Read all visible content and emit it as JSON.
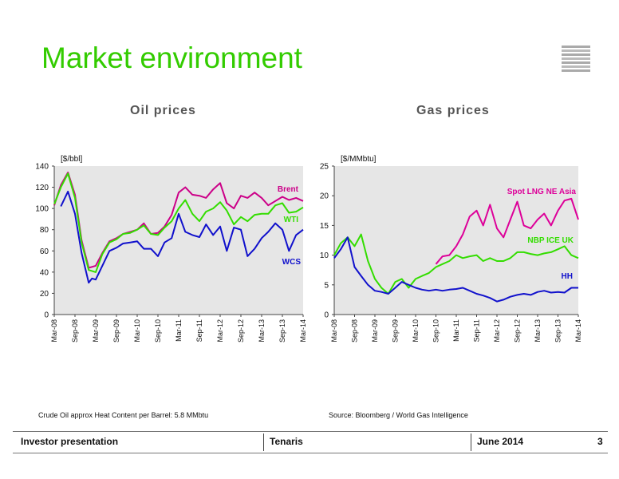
{
  "page": {
    "title": "Market environment"
  },
  "notes": {
    "left": "Crude Oil approx Heat Content per Barrel: 5.8 MMbtu",
    "right": "Source:  Bloomberg / World Gas Intelligence"
  },
  "footer": {
    "presentation": "Investor presentation",
    "company": "Tenaris",
    "date": "June 2014",
    "page_number": "3"
  },
  "colors": {
    "title": "#33cc00",
    "plot_bg": "#e6e6e6",
    "brent": "#cc0088",
    "wti": "#33dd00",
    "wcs": "#1111cc",
    "lng": "#dd0099",
    "nbp": "#33dd00",
    "hh": "#1111cc"
  },
  "chart_data": [
    {
      "type": "line",
      "title": "Oil prices",
      "ylabel": "[$/bbl]",
      "ylim": [
        0,
        140
      ],
      "yticks": [
        "0",
        "20",
        "40",
        "60",
        "80",
        "100",
        "120",
        "140"
      ],
      "xticks": [
        "Mar-08",
        "Sep-08",
        "Mar-09",
        "Sep-09",
        "Mar-10",
        "Sep-10",
        "Mar-11",
        "Sep-11",
        "Mar-12",
        "Sep-12",
        "Mar-13",
        "Sep-13",
        "Mar-14"
      ],
      "grid": false,
      "series": [
        {
          "name": "Brent",
          "color": "#cc0088",
          "x": [
            2008.17,
            2008.33,
            2008.5,
            2008.67,
            2008.83,
            2009.0,
            2009.17,
            2009.33,
            2009.5,
            2009.67,
            2009.83,
            2010.0,
            2010.17,
            2010.33,
            2010.5,
            2010.67,
            2010.83,
            2011.0,
            2011.17,
            2011.33,
            2011.5,
            2011.67,
            2011.83,
            2012.0,
            2012.17,
            2012.33,
            2012.5,
            2012.67,
            2012.83,
            2013.0,
            2013.17,
            2013.33,
            2013.5,
            2013.67,
            2013.83,
            2014.0,
            2014.17
          ],
          "y": [
            103,
            122,
            134,
            113,
            70,
            44,
            46,
            58,
            69,
            72,
            76,
            78,
            80,
            86,
            76,
            77,
            83,
            94,
            115,
            120,
            113,
            112,
            110,
            118,
            124,
            105,
            100,
            112,
            110,
            115,
            110,
            103,
            107,
            111,
            108,
            110,
            107
          ]
        },
        {
          "name": "WTI",
          "color": "#33dd00",
          "x": [
            2008.17,
            2008.33,
            2008.5,
            2008.67,
            2008.83,
            2009.0,
            2009.17,
            2009.33,
            2009.5,
            2009.67,
            2009.83,
            2010.0,
            2010.17,
            2010.33,
            2010.5,
            2010.67,
            2010.83,
            2011.0,
            2011.17,
            2011.33,
            2011.5,
            2011.67,
            2011.83,
            2012.0,
            2012.17,
            2012.33,
            2012.5,
            2012.67,
            2012.83,
            2013.0,
            2013.17,
            2013.33,
            2013.5,
            2013.67,
            2013.83,
            2014.0,
            2014.17
          ],
          "y": [
            104,
            120,
            133,
            110,
            68,
            42,
            40,
            57,
            68,
            71,
            76,
            77,
            80,
            84,
            76,
            75,
            82,
            88,
            100,
            108,
            95,
            88,
            97,
            100,
            106,
            98,
            85,
            92,
            88,
            94,
            95,
            95,
            103,
            105,
            96,
            97,
            101
          ]
        },
        {
          "name": "WCS",
          "color": "#1111cc",
          "x": [
            2008.33,
            2008.5,
            2008.67,
            2008.83,
            2009.0,
            2009.08,
            2009.17,
            2009.33,
            2009.5,
            2009.67,
            2009.83,
            2010.0,
            2010.17,
            2010.33,
            2010.5,
            2010.67,
            2010.83,
            2011.0,
            2011.17,
            2011.33,
            2011.5,
            2011.67,
            2011.83,
            2012.0,
            2012.17,
            2012.33,
            2012.5,
            2012.67,
            2012.83,
            2013.0,
            2013.17,
            2013.33,
            2013.5,
            2013.67,
            2013.83,
            2014.0,
            2014.17
          ],
          "y": [
            102,
            116,
            95,
            58,
            30,
            34,
            33,
            46,
            60,
            63,
            67,
            68,
            69,
            62,
            62,
            55,
            68,
            72,
            95,
            78,
            75,
            73,
            85,
            75,
            83,
            60,
            82,
            80,
            55,
            62,
            72,
            78,
            86,
            80,
            60,
            75,
            80
          ]
        }
      ],
      "labels": [
        {
          "text": "Brent",
          "color": "#cc0088"
        },
        {
          "text": "WTI",
          "color": "#33dd00"
        },
        {
          "text": "WCS",
          "color": "#1111cc"
        }
      ]
    },
    {
      "type": "line",
      "title": "Gas prices",
      "ylabel": "[$/MMbtu]",
      "ylim": [
        0,
        25
      ],
      "yticks": [
        "0",
        "5",
        "10",
        "15",
        "20",
        "25"
      ],
      "xticks": [
        "Mar-08",
        "Sep-08",
        "Mar-09",
        "Sep-09",
        "Mar-10",
        "Sep-10",
        "Mar-11",
        "Sep-11",
        "Mar-12",
        "Sep-12",
        "Mar-13",
        "Sep-13",
        "Mar-14"
      ],
      "grid": false,
      "series": [
        {
          "name": "Spot LNG NE Asia",
          "color": "#dd0099",
          "x": [
            2010.67,
            2010.83,
            2011.0,
            2011.17,
            2011.33,
            2011.5,
            2011.67,
            2011.83,
            2012.0,
            2012.17,
            2012.33,
            2012.5,
            2012.67,
            2012.83,
            2013.0,
            2013.17,
            2013.33,
            2013.5,
            2013.67,
            2013.83,
            2014.0,
            2014.17
          ],
          "y": [
            8.5,
            9.8,
            10.0,
            11.5,
            13.5,
            16.5,
            17.5,
            15.0,
            18.5,
            14.5,
            13.0,
            16.0,
            19.0,
            15.0,
            14.5,
            16.0,
            17.0,
            15.0,
            17.5,
            19.2,
            19.5,
            16.0
          ]
        },
        {
          "name": "NBP ICE UK",
          "color": "#33dd00",
          "x": [
            2008.17,
            2008.33,
            2008.5,
            2008.67,
            2008.83,
            2009.0,
            2009.17,
            2009.33,
            2009.5,
            2009.67,
            2009.83,
            2010.0,
            2010.17,
            2010.33,
            2010.5,
            2010.67,
            2010.83,
            2011.0,
            2011.17,
            2011.33,
            2011.5,
            2011.67,
            2011.83,
            2012.0,
            2012.17,
            2012.33,
            2012.5,
            2012.67,
            2012.83,
            2013.0,
            2013.17,
            2013.33,
            2013.5,
            2013.67,
            2013.83,
            2014.0,
            2014.17
          ],
          "y": [
            10.0,
            12.0,
            13.0,
            11.5,
            13.5,
            9.0,
            6.0,
            4.5,
            3.5,
            5.5,
            6.0,
            4.5,
            6.0,
            6.5,
            7.0,
            8.0,
            8.5,
            9.0,
            10.0,
            9.5,
            9.8,
            10.0,
            9.0,
            9.5,
            9.0,
            9.0,
            9.5,
            10.5,
            10.5,
            10.2,
            10.0,
            10.3,
            10.5,
            11.0,
            11.5,
            10.0,
            9.5
          ]
        },
        {
          "name": "HH",
          "color": "#1111cc",
          "x": [
            2008.17,
            2008.33,
            2008.5,
            2008.67,
            2008.83,
            2009.0,
            2009.17,
            2009.33,
            2009.5,
            2009.67,
            2009.83,
            2010.0,
            2010.17,
            2010.33,
            2010.5,
            2010.67,
            2010.83,
            2011.0,
            2011.17,
            2011.33,
            2011.5,
            2011.67,
            2011.83,
            2012.0,
            2012.17,
            2012.33,
            2012.5,
            2012.67,
            2012.83,
            2013.0,
            2013.17,
            2013.33,
            2013.5,
            2013.67,
            2013.83,
            2014.0,
            2014.17
          ],
          "y": [
            9.5,
            11.0,
            13.0,
            8.0,
            6.5,
            5.0,
            4.0,
            3.8,
            3.5,
            4.5,
            5.5,
            5.0,
            4.5,
            4.2,
            4.0,
            4.2,
            4.0,
            4.2,
            4.3,
            4.5,
            4.0,
            3.5,
            3.2,
            2.8,
            2.2,
            2.5,
            3.0,
            3.3,
            3.5,
            3.3,
            3.8,
            4.0,
            3.7,
            3.8,
            3.7,
            4.5,
            4.5
          ]
        }
      ],
      "labels": [
        {
          "text": "Spot LNG NE Asia",
          "color": "#dd0099"
        },
        {
          "text": "NBP ICE UK",
          "color": "#33dd00"
        },
        {
          "text": "HH",
          "color": "#1111cc"
        }
      ]
    }
  ]
}
